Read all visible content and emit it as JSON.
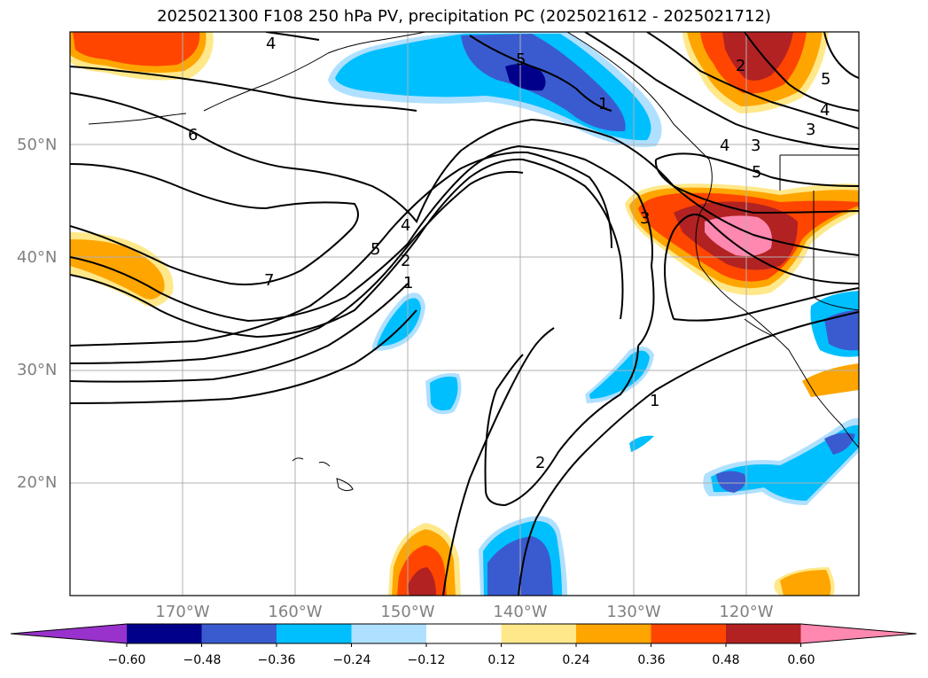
{
  "title": "2025021300 F108 250 hPa PV, precipitation PC (2025021612 - 2025021712)",
  "map": {
    "lat_labels": [
      "50°N",
      "40°N",
      "30°N",
      "20°N"
    ],
    "lon_labels": [
      "170°W",
      "160°W",
      "150°W",
      "140°W",
      "130°W",
      "120°W"
    ],
    "pv_contour_labels": [
      "4",
      "6",
      "7",
      "5",
      "4",
      "2",
      "1",
      "5",
      "1",
      "5",
      "4",
      "3",
      "5",
      "3",
      "2",
      "4",
      "3",
      "2",
      "1"
    ]
  },
  "colorbar": {
    "tick_labels": [
      "−0.60",
      "−0.48",
      "−0.36",
      "−0.24",
      "−0.12",
      "0.12",
      "0.24",
      "0.36",
      "0.48",
      "0.60"
    ],
    "colors": [
      "#9932cc",
      "#00008b",
      "#3a5bd0",
      "#00bfff",
      "#b0e0ff",
      "#ffffff",
      "#ffe88a",
      "#ffa500",
      "#ff4500",
      "#b22222",
      "#ff88b0",
      "#ff88b0"
    ]
  }
}
